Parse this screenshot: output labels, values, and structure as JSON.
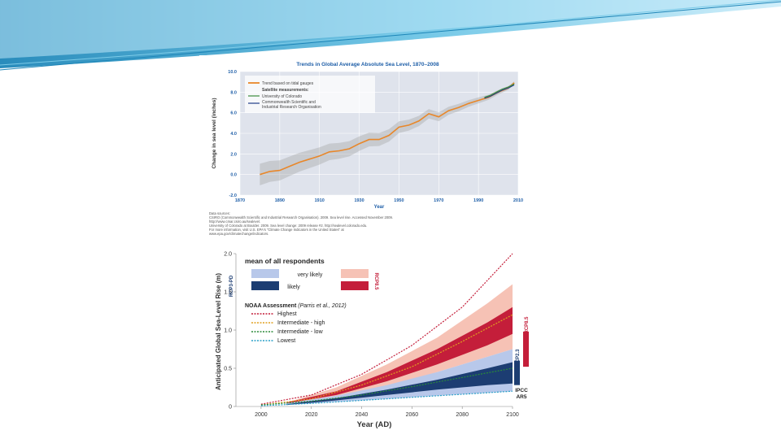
{
  "colors": {
    "banner_light": "#cfeefa",
    "banner_mid": "#6fc6e6",
    "banner_dark": "#1e86b8",
    "tide_orange": "#e8872a",
    "tide_band": "#9a9a9a",
    "cu_green": "#3c8c3c",
    "csiro_blue": "#1f3e88",
    "very_likely_blue": "#b8c8ea",
    "likely_blue": "#1c3d72",
    "very_likely_red": "#f6c2b5",
    "likely_red": "#c41e3a",
    "noaa_highest": "#c41e3a",
    "noaa_int_high": "#e0a020",
    "noaa_int_low": "#2a8a3a",
    "noaa_lowest": "#2aa0c8"
  },
  "chart_data": [
    {
      "type": "line",
      "title": "Trends in Global Average Absolute Sea Level, 1870–2008",
      "xlabel": "Year",
      "ylabel": "Change in sea level (inches)",
      "xlim": [
        1870,
        2010
      ],
      "ylim": [
        -2.0,
        10.0
      ],
      "xticks": [
        "1870",
        "1890",
        "1910",
        "1930",
        "1950",
        "1970",
        "1990",
        "2010"
      ],
      "yticks": [
        "-2.0",
        "0.0",
        "2.0",
        "4.0",
        "6.0",
        "8.0",
        "10.0"
      ],
      "grid": true,
      "legend_position": "top-left",
      "legend": {
        "tide": "Trend based on tidal gauges",
        "sat_header": "Satellite measurements:",
        "cu": "University of Colorado",
        "csiro_line1": "Commonwealth Scientific and",
        "csiro_line2": "Industrial Research Organisation"
      },
      "series": [
        {
          "name": "Trend based on tidal gauges",
          "x": [
            1880,
            1885,
            1890,
            1895,
            1900,
            1905,
            1910,
            1915,
            1920,
            1925,
            1930,
            1935,
            1940,
            1945,
            1950,
            1955,
            1960,
            1965,
            1970,
            1975,
            1980,
            1985,
            1990,
            1995,
            2000,
            2005,
            2008
          ],
          "y": [
            0.0,
            0.3,
            0.4,
            0.8,
            1.2,
            1.5,
            1.8,
            2.2,
            2.3,
            2.5,
            3.0,
            3.4,
            3.4,
            3.8,
            4.6,
            4.8,
            5.2,
            5.9,
            5.6,
            6.2,
            6.5,
            6.9,
            7.2,
            7.5,
            8.0,
            8.4,
            8.9
          ]
        },
        {
          "name": "University of Colorado",
          "x": [
            1993,
            1996,
            1999,
            2002,
            2005,
            2008
          ],
          "y": [
            7.5,
            7.7,
            8.0,
            8.3,
            8.5,
            8.8
          ]
        },
        {
          "name": "Commonwealth Scientific and Industrial Research Organisation",
          "x": [
            1993,
            1996,
            1999,
            2002,
            2005,
            2008
          ],
          "y": [
            7.4,
            7.6,
            7.9,
            8.2,
            8.4,
            8.7
          ]
        }
      ],
      "sources": [
        "Data sources:",
        "CSIRO (Commonwealth Scientific and Industrial Research Organisation). 2009. Sea level rise. Accessed November 2009.",
        "http://www.cmar.csiro.au/sealevel.",
        "University of Colorado at Boulder. 2009. Sea level change: 2009 release #2. http://sealevel.colorado.edu.",
        "For more information, visit U.S. EPA's \"Climate Change Indicators in the United States\" at",
        "www.epa.gov/climatechange/indicators."
      ]
    },
    {
      "type": "area",
      "xlabel": "Year (AD)",
      "ylabel": "Anticipated Global Sea-Level Rise (m)",
      "xlim": [
        1990,
        2100
      ],
      "ylim": [
        0,
        2.0
      ],
      "xticks": [
        "2000",
        "2020",
        "2040",
        "2060",
        "2080",
        "2100"
      ],
      "yticks": [
        "0",
        "0.5",
        "1.0",
        "1.5",
        "2.0"
      ],
      "legend_position": "top-left",
      "legend": {
        "header": "mean of all respondents",
        "very_likely": "very likely",
        "likely": "likely",
        "rcp_low": "RCP3-PD",
        "rcp_high": "RCP8.5",
        "noaa_title": "NOAA Assessment",
        "noaa_cite": "(Parris et al., 2012)",
        "highest": "Highest",
        "int_high": "Intermediate - high",
        "int_low": "Intermediate - low",
        "lowest": "Lowest"
      },
      "side_labels": {
        "rcp85": "RCP8.5",
        "rcp23": "RCP2.3",
        "ipcc_line1": "IPCC",
        "ipcc_line2": "AR5"
      },
      "series": [
        {
          "name": "Highest",
          "x": [
            2000,
            2020,
            2040,
            2060,
            2080,
            2100
          ],
          "y": [
            0.03,
            0.15,
            0.42,
            0.8,
            1.3,
            2.0
          ]
        },
        {
          "name": "Intermediate - high",
          "x": [
            2000,
            2020,
            2040,
            2060,
            2080,
            2100
          ],
          "y": [
            0.02,
            0.1,
            0.28,
            0.52,
            0.85,
            1.2
          ]
        },
        {
          "name": "Intermediate - low",
          "x": [
            2000,
            2020,
            2040,
            2060,
            2080,
            2100
          ],
          "y": [
            0.02,
            0.07,
            0.15,
            0.26,
            0.38,
            0.5
          ]
        },
        {
          "name": "Lowest",
          "x": [
            2000,
            2020,
            2040,
            2060,
            2080,
            2100
          ],
          "y": [
            0.01,
            0.04,
            0.08,
            0.12,
            0.16,
            0.2
          ]
        },
        {
          "name": "RCP8.5 very likely",
          "x": [
            2010,
            2030,
            2050,
            2070,
            2090,
            2100
          ],
          "lower": [
            0.03,
            0.1,
            0.25,
            0.45,
            0.65,
            0.75
          ],
          "upper": [
            0.05,
            0.25,
            0.55,
            0.9,
            1.35,
            1.6
          ]
        },
        {
          "name": "RCP8.5 likely",
          "x": [
            2010,
            2030,
            2050,
            2070,
            2090,
            2100
          ],
          "lower": [
            0.04,
            0.15,
            0.33,
            0.55,
            0.8,
            0.95
          ],
          "upper": [
            0.05,
            0.2,
            0.45,
            0.75,
            1.1,
            1.3
          ]
        },
        {
          "name": "RCP3-PD very likely",
          "x": [
            2010,
            2030,
            2050,
            2070,
            2090,
            2100
          ],
          "lower": [
            0.02,
            0.06,
            0.1,
            0.14,
            0.18,
            0.2
          ],
          "upper": [
            0.04,
            0.14,
            0.28,
            0.45,
            0.65,
            0.75
          ]
        },
        {
          "name": "RCP3-PD likely",
          "x": [
            2010,
            2030,
            2050,
            2070,
            2090,
            2100
          ],
          "lower": [
            0.02,
            0.08,
            0.15,
            0.22,
            0.28,
            0.3
          ],
          "upper": [
            0.03,
            0.11,
            0.22,
            0.35,
            0.5,
            0.58
          ]
        }
      ],
      "bars": [
        {
          "name": "RCP8.5",
          "range": [
            0.52,
            0.98
          ]
        },
        {
          "name": "RCP2.3",
          "range": [
            0.28,
            0.6
          ]
        }
      ]
    }
  ]
}
